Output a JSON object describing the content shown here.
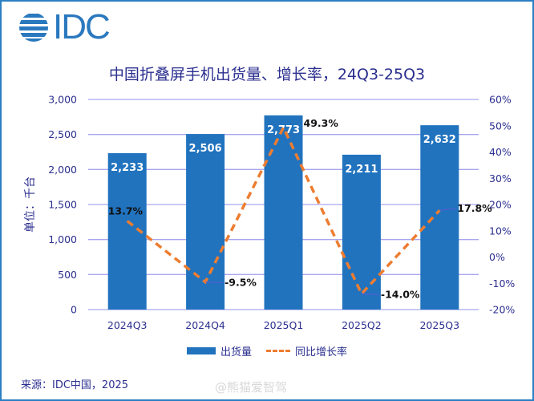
{
  "header": {
    "logo_text": "IDC",
    "title": "中国折叠屏手机出货量、增长率，24Q3-25Q3"
  },
  "footer": {
    "source": "来源：IDC中国，2025",
    "watermark": "@熊猫爱智驾"
  },
  "legend": {
    "bar_label": "出货量",
    "line_label": "同比增长率"
  },
  "colors": {
    "bar": "#2173be",
    "line": "#ed7d31",
    "axis_text": "#2b2f8f",
    "grid": "#a9a6ee",
    "border": "#2a7fc4"
  },
  "chart_data": {
    "type": "bar+line",
    "title": "中国折叠屏手机出货量、增长率，24Q3-25Q3",
    "categories": [
      "2024Q3",
      "2024Q4",
      "2025Q1",
      "2025Q2",
      "2025Q3"
    ],
    "series": [
      {
        "name": "出货量",
        "type": "bar",
        "axis": "left",
        "values": [
          2233,
          2506,
          2773,
          2211,
          2632
        ],
        "labels": [
          "2,233",
          "2,506",
          "2,773",
          "2,211",
          "2,632"
        ]
      },
      {
        "name": "同比增长率",
        "type": "line",
        "axis": "right",
        "style": "dashed",
        "values": [
          13.7,
          -9.5,
          49.3,
          -14.0,
          17.8
        ],
        "labels": [
          "13.7%",
          "-9.5%",
          "49.3%",
          "-14.0%",
          "17.8%"
        ]
      }
    ],
    "ylabel": "单位：千台",
    "xlabel": "",
    "ylim": [
      0,
      3000
    ],
    "yticks": [
      "0",
      "500",
      "1,000",
      "1,500",
      "2,000",
      "2,500",
      "3,000"
    ],
    "y2lim": [
      -20,
      60
    ],
    "y2ticks": [
      "-20%",
      "-10%",
      "0%",
      "10%",
      "20%",
      "30%",
      "40%",
      "50%",
      "60%"
    ],
    "grid": true,
    "legend_position": "bottom"
  }
}
